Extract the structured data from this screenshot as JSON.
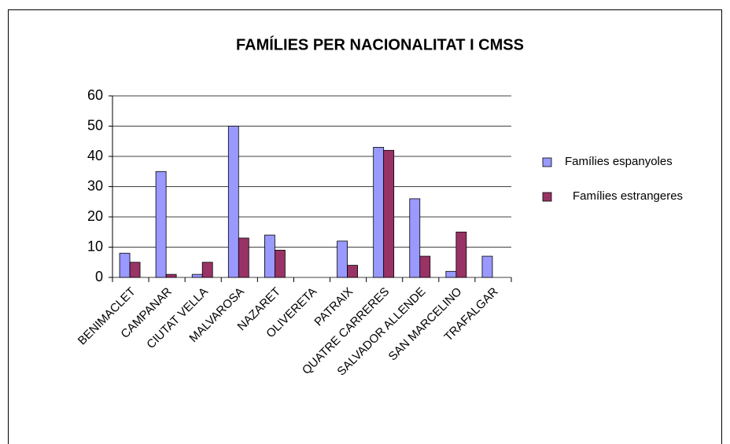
{
  "chart_data": {
    "type": "bar",
    "title": "FAMÍLIES PER NACIONALITAT I CMSS",
    "categories": [
      "BENIMACLET",
      "CAMPANAR",
      "CIUTAT VELLA",
      "MALVAROSA",
      "NAZARET",
      "OLIVERETA",
      "PATRAIX",
      "QUATRE CARRERES",
      "SALVADOR ALLENDE",
      "SAN MARCELINO",
      "TRAFALGAR"
    ],
    "series": [
      {
        "name": "Famílies espanyoles",
        "color": "#9999ff",
        "values": [
          8,
          35,
          1,
          50,
          14,
          0,
          12,
          43,
          26,
          2,
          7
        ]
      },
      {
        "name": "Famílies estrangeres",
        "color": "#993366",
        "values": [
          5,
          1,
          5,
          13,
          9,
          0,
          4,
          42,
          7,
          15,
          0
        ]
      }
    ],
    "ylim": [
      0,
      60
    ],
    "yticks": [
      0,
      10,
      20,
      30,
      40,
      50,
      60
    ],
    "grid": true,
    "legend": "right"
  }
}
